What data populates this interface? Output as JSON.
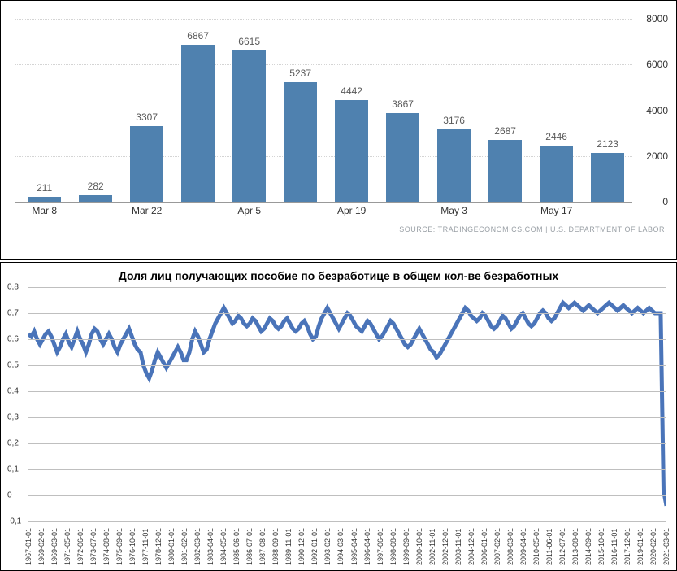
{
  "top_chart": {
    "type": "bar",
    "bars": [
      {
        "label": "Mar 8",
        "value": 211,
        "show_xlabel": true
      },
      {
        "label": "",
        "value": 282,
        "show_xlabel": false
      },
      {
        "label": "Mar 22",
        "value": 3307,
        "show_xlabel": true
      },
      {
        "label": "",
        "value": 6867,
        "show_xlabel": false
      },
      {
        "label": "Apr 5",
        "value": 6615,
        "show_xlabel": true
      },
      {
        "label": "",
        "value": 5237,
        "show_xlabel": false
      },
      {
        "label": "Apr 19",
        "value": 4442,
        "show_xlabel": true
      },
      {
        "label": "",
        "value": 3867,
        "show_xlabel": false
      },
      {
        "label": "May 3",
        "value": 3176,
        "show_xlabel": true
      },
      {
        "label": "",
        "value": 2687,
        "show_xlabel": false
      },
      {
        "label": "May 17",
        "value": 2446,
        "show_xlabel": true
      },
      {
        "label": "",
        "value": 2123,
        "show_xlabel": false
      }
    ],
    "bar_color": "#4f81af",
    "value_label_color": "#5a5a5a",
    "value_label_fontsize": 12,
    "ylim": [
      0,
      8000
    ],
    "ytick_step": 2000,
    "yticks": [
      0,
      2000,
      4000,
      6000,
      8000
    ],
    "grid_color": "#d4d4d4",
    "bar_width_pct": 5.4,
    "bar_gap_pct": 2.9,
    "source_text": "SOURCE: TRADINGECONOMICS.COM | U.S. DEPARTMENT OF LABOR"
  },
  "bottom_chart": {
    "type": "line",
    "title": "Доля лиц получающих пособие по безработице в общем кол-ве безработных",
    "line_color": "#4a74b9",
    "grid_color": "#bfbfbf",
    "title_fontsize": 14,
    "label_fontsize": 10,
    "ylim": [
      -0.1,
      0.8
    ],
    "yticks": [
      -0.1,
      0,
      0.1,
      0.2,
      0.3,
      0.4,
      0.5,
      0.6,
      0.7,
      0.8
    ],
    "ytick_labels": [
      "-0,1",
      "0",
      "0,1",
      "0,2",
      "0,3",
      "0,4",
      "0,5",
      "0,6",
      "0,7",
      "0,8"
    ],
    "x_labels": [
      "1967-01-01",
      "1969-02-01",
      "1969-03-01",
      "1971-05-01",
      "1972-06-01",
      "1973-07-01",
      "1974-08-01",
      "1975-09-01",
      "1976-10-01",
      "1977-11-01",
      "1978-12-01",
      "1980-01-01",
      "1981-02-01",
      "1982-03-01",
      "1983-04-01",
      "1984-05-01",
      "1985-06-01",
      "1986-07-01",
      "1987-08-01",
      "1988-09-01",
      "1989-11-01",
      "1990-12-01",
      "1992-01-01",
      "1993-02-01",
      "1994-03-01",
      "1995-04-01",
      "1996-04-01",
      "1997-06-01",
      "1998-08-01",
      "1999-09-01",
      "2000-10-01",
      "2002-11-01",
      "2002-12-01",
      "2003-11-01",
      "2004-12-01",
      "2006-01-01",
      "2007-02-01",
      "2008-03-01",
      "2009-04-01",
      "2010-05-01",
      "2011-06-01",
      "2012-07-01",
      "2013-08-01",
      "2014-09-01",
      "2015-10-01",
      "2016-11-01",
      "2017-12-01",
      "2019-01-01",
      "2020-02-01",
      "2021-03-01"
    ],
    "series": [
      0.62,
      0.61,
      0.63,
      0.6,
      0.58,
      0.6,
      0.62,
      0.63,
      0.61,
      0.58,
      0.55,
      0.57,
      0.6,
      0.62,
      0.59,
      0.57,
      0.6,
      0.63,
      0.6,
      0.58,
      0.55,
      0.58,
      0.62,
      0.64,
      0.63,
      0.6,
      0.58,
      0.6,
      0.62,
      0.6,
      0.57,
      0.55,
      0.58,
      0.6,
      0.62,
      0.64,
      0.61,
      0.58,
      0.56,
      0.55,
      0.5,
      0.47,
      0.45,
      0.48,
      0.52,
      0.55,
      0.53,
      0.51,
      0.49,
      0.51,
      0.53,
      0.55,
      0.57,
      0.55,
      0.52,
      0.52,
      0.55,
      0.6,
      0.63,
      0.61,
      0.58,
      0.55,
      0.56,
      0.6,
      0.63,
      0.66,
      0.68,
      0.7,
      0.72,
      0.7,
      0.68,
      0.66,
      0.67,
      0.69,
      0.68,
      0.66,
      0.65,
      0.66,
      0.68,
      0.67,
      0.65,
      0.63,
      0.64,
      0.66,
      0.68,
      0.67,
      0.65,
      0.64,
      0.65,
      0.67,
      0.68,
      0.66,
      0.64,
      0.63,
      0.64,
      0.66,
      0.67,
      0.65,
      0.62,
      0.6,
      0.61,
      0.65,
      0.68,
      0.7,
      0.72,
      0.7,
      0.68,
      0.66,
      0.64,
      0.66,
      0.68,
      0.7,
      0.69,
      0.67,
      0.65,
      0.64,
      0.63,
      0.65,
      0.67,
      0.66,
      0.64,
      0.62,
      0.6,
      0.61,
      0.63,
      0.65,
      0.67,
      0.66,
      0.64,
      0.62,
      0.6,
      0.58,
      0.57,
      0.58,
      0.6,
      0.62,
      0.64,
      0.62,
      0.6,
      0.58,
      0.56,
      0.55,
      0.53,
      0.54,
      0.56,
      0.58,
      0.6,
      0.62,
      0.64,
      0.66,
      0.68,
      0.7,
      0.72,
      0.71,
      0.69,
      0.68,
      0.67,
      0.68,
      0.7,
      0.69,
      0.67,
      0.65,
      0.64,
      0.65,
      0.67,
      0.69,
      0.68,
      0.66,
      0.64,
      0.65,
      0.67,
      0.69,
      0.7,
      0.68,
      0.66,
      0.65,
      0.66,
      0.68,
      0.7,
      0.71,
      0.7,
      0.68,
      0.67,
      0.68,
      0.7,
      0.72,
      0.74,
      0.73,
      0.72,
      0.73,
      0.74,
      0.73,
      0.72,
      0.71,
      0.72,
      0.73,
      0.72,
      0.71,
      0.7,
      0.71,
      0.72,
      0.73,
      0.74,
      0.73,
      0.72,
      0.71,
      0.72,
      0.73,
      0.72,
      0.71,
      0.7,
      0.71,
      0.72,
      0.71,
      0.7,
      0.71,
      0.72,
      0.71,
      0.7,
      0.7,
      0.7,
      0.02,
      -0.04
    ]
  }
}
